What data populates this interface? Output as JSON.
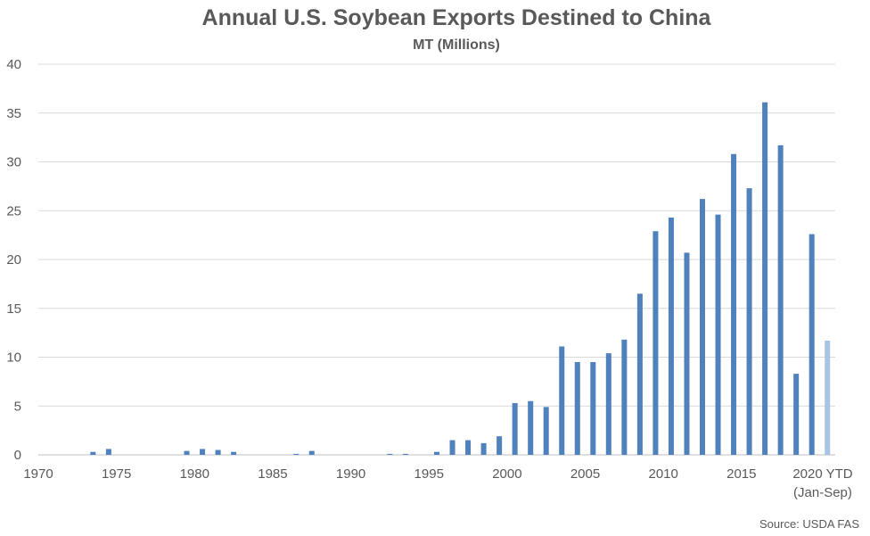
{
  "chart_data": {
    "type": "bar",
    "title": "Annual U.S. Soybean Exports Destined to China",
    "subtitle": "MT (Millions)",
    "source": "Source: USDA FAS",
    "ylim": [
      0,
      40
    ],
    "yticks": [
      0,
      5,
      10,
      15,
      20,
      25,
      30,
      35,
      40
    ],
    "xtick_labels": [
      "1970",
      "1975",
      "1980",
      "1985",
      "1990",
      "1995",
      "2000",
      "2005",
      "2010",
      "2015",
      "2020 YTD",
      "(Jan-Sep)"
    ],
    "grid": true,
    "colors": {
      "bar": "#4f81bd",
      "bar_ytd": "#a9c4e4",
      "grid": "#d9d9d9",
      "text": "#595959"
    },
    "categories": [
      "1970",
      "1971",
      "1972",
      "1973",
      "1974",
      "1975",
      "1976",
      "1977",
      "1978",
      "1979",
      "1980",
      "1981",
      "1982",
      "1983",
      "1984",
      "1985",
      "1986",
      "1987",
      "1988",
      "1989",
      "1990",
      "1991",
      "1992",
      "1993",
      "1994",
      "1995",
      "1996",
      "1997",
      "1998",
      "1999",
      "2000",
      "2001",
      "2002",
      "2003",
      "2004",
      "2005",
      "2006",
      "2007",
      "2008",
      "2009",
      "2010",
      "2011",
      "2012",
      "2013",
      "2014",
      "2015",
      "2016",
      "2017",
      "2018",
      "2019",
      "2020 YTD (Jan-Sep)"
    ],
    "values": [
      0,
      0,
      0,
      0.3,
      0.6,
      0,
      0,
      0,
      0,
      0.4,
      0.6,
      0.5,
      0.3,
      0,
      0,
      0,
      0.1,
      0.4,
      0,
      0,
      0,
      0,
      0.1,
      0.1,
      0,
      0.3,
      1.5,
      1.5,
      1.2,
      1.9,
      5.3,
      5.5,
      4.9,
      11.1,
      9.5,
      9.5,
      10.4,
      11.8,
      16.5,
      22.9,
      24.3,
      20.7,
      26.2,
      24.6,
      30.8,
      27.3,
      36.1,
      31.7,
      8.3,
      22.6,
      11.7
    ],
    "highlight_index": 50
  }
}
